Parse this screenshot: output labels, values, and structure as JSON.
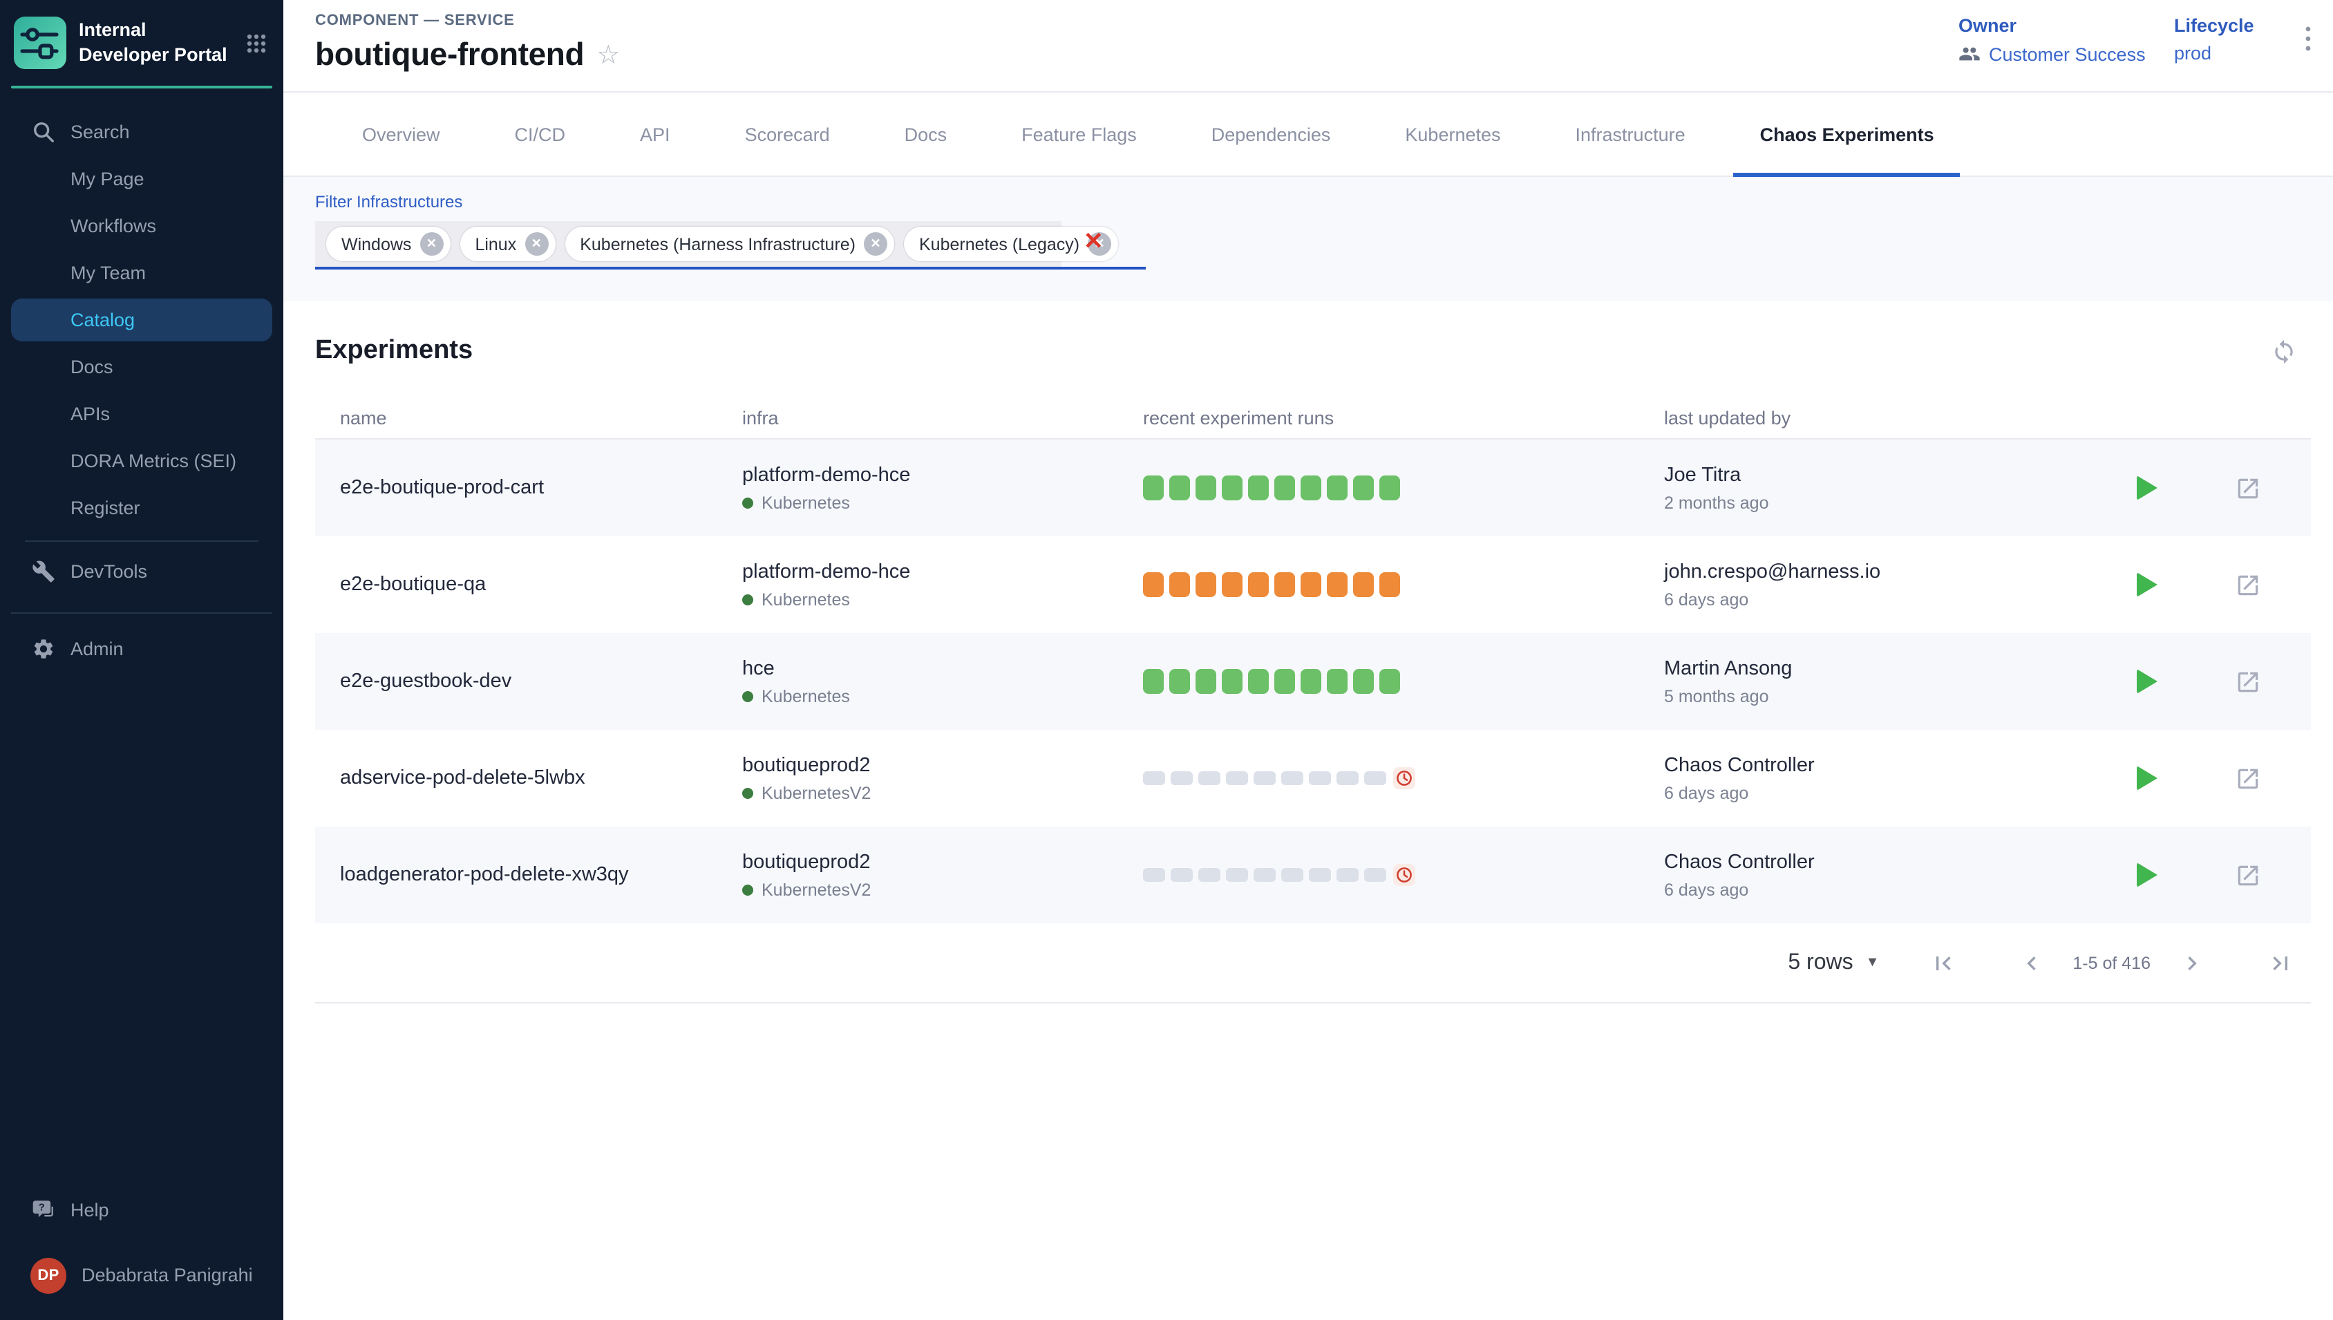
{
  "sidebar": {
    "brand_title": "Internal Developer Portal",
    "search_label": "Search",
    "items": [
      {
        "label": "My Page",
        "active": false
      },
      {
        "label": "Workflows",
        "active": false
      },
      {
        "label": "My Team",
        "active": false
      },
      {
        "label": "Catalog",
        "active": true
      },
      {
        "label": "Docs",
        "active": false
      },
      {
        "label": "APIs",
        "active": false
      },
      {
        "label": "DORA Metrics (SEI)",
        "active": false
      },
      {
        "label": "Register",
        "active": false
      }
    ],
    "devtools_label": "DevTools",
    "admin_label": "Admin",
    "help_label": "Help",
    "user": {
      "initials": "DP",
      "name": "Debabrata Panigrahi"
    }
  },
  "header": {
    "breadcrumb": "COMPONENT — SERVICE",
    "title": "boutique-frontend",
    "owner": {
      "label": "Owner",
      "value": "Customer Success"
    },
    "lifecycle": {
      "label": "Lifecycle",
      "value": "prod"
    }
  },
  "tabs": [
    {
      "label": "Overview",
      "active": false
    },
    {
      "label": "CI/CD",
      "active": false
    },
    {
      "label": "API",
      "active": false
    },
    {
      "label": "Scorecard",
      "active": false
    },
    {
      "label": "Docs",
      "active": false
    },
    {
      "label": "Feature Flags",
      "active": false
    },
    {
      "label": "Dependencies",
      "active": false
    },
    {
      "label": "Kubernetes",
      "active": false
    },
    {
      "label": "Infrastructure",
      "active": false
    },
    {
      "label": "Chaos Experiments",
      "active": true
    }
  ],
  "filter": {
    "label": "Filter Infrastructures",
    "chips": [
      "Windows",
      "Linux",
      "Kubernetes (Harness Infrastructure)",
      "Kubernetes (Legacy)"
    ]
  },
  "experiments": {
    "title": "Experiments",
    "columns": [
      "name",
      "infra",
      "recent experiment runs",
      "last updated by"
    ],
    "rows": [
      {
        "name": "e2e-boutique-prod-cart",
        "infra_name": "platform-demo-hce",
        "infra_type": "Kubernetes",
        "runs": {
          "status": "passed",
          "count": 10,
          "overflow_clock": false
        },
        "updated_by": "Joe Titra",
        "updated_at": "2 months ago"
      },
      {
        "name": "e2e-boutique-qa",
        "infra_name": "platform-demo-hce",
        "infra_type": "Kubernetes",
        "runs": {
          "status": "failed",
          "count": 10,
          "overflow_clock": false
        },
        "updated_by": "john.crespo@harness.io",
        "updated_at": "6 days ago"
      },
      {
        "name": "e2e-guestbook-dev",
        "infra_name": "hce",
        "infra_type": "Kubernetes",
        "runs": {
          "status": "passed",
          "count": 10,
          "overflow_clock": false
        },
        "updated_by": "Martin Ansong",
        "updated_at": "5 months ago"
      },
      {
        "name": "adservice-pod-delete-5lwbx",
        "infra_name": "boutiqueprod2",
        "infra_type": "KubernetesV2",
        "runs": {
          "status": "norun",
          "count": 9,
          "overflow_clock": true
        },
        "updated_by": "Chaos Controller",
        "updated_at": "6 days ago"
      },
      {
        "name": "loadgenerator-pod-delete-xw3qy",
        "infra_name": "boutiqueprod2",
        "infra_type": "KubernetesV2",
        "runs": {
          "status": "norun",
          "count": 9,
          "overflow_clock": true
        },
        "updated_by": "Chaos Controller",
        "updated_at": "6 days ago"
      }
    ],
    "pagination": {
      "page_size_label": "5 rows",
      "range_label": "1-5 of 416"
    }
  },
  "colors": {
    "sidebar_bg": "#0e1b2e",
    "sidebar_active_bg": "#1d3c63",
    "sidebar_active_text": "#3ec8f5",
    "brand_teal": "#37b597",
    "accent_blue": "#2b63cc",
    "link_blue": "#3c68cc",
    "run_passed": "#6cc068",
    "run_failed": "#ee8a38",
    "run_norun": "#dce0e9",
    "clock_red": "#cf3f2e",
    "play_green": "#41b54e",
    "stripe": "#f6f8fb",
    "avatar_red": "#c2402d"
  }
}
